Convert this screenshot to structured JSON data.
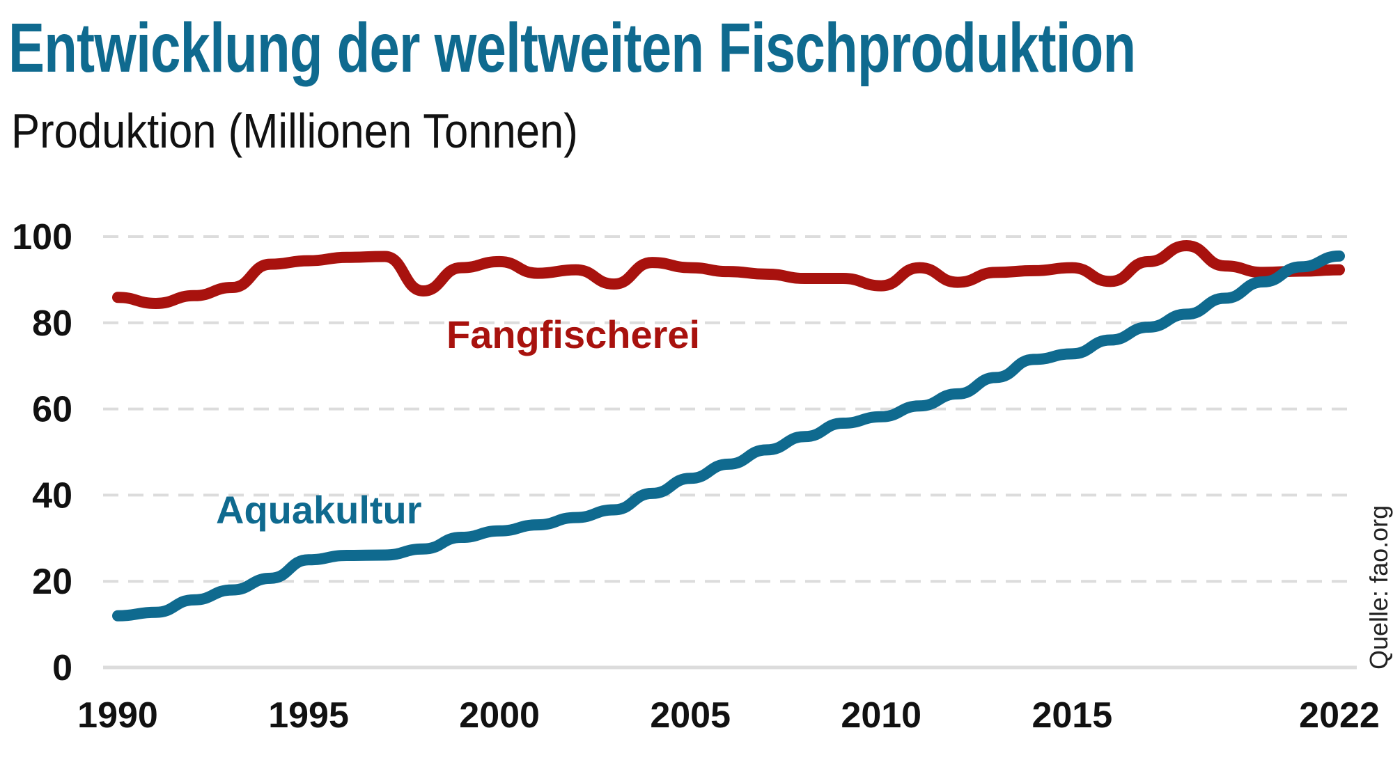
{
  "title": "Entwicklung der weltweiten Fischproduktion",
  "subtitle": "Produktion (Millionen Tonnen)",
  "source": "Quelle: fao.org",
  "chart_data": {
    "type": "line",
    "title": "Entwicklung der weltweiten Fischproduktion",
    "ylabel": "Produktion (Millionen Tonnen)",
    "xlabel": "",
    "xlim": [
      1990,
      2022
    ],
    "ylim": [
      0,
      100
    ],
    "grid": true,
    "x_ticks": [
      "1990",
      "1995",
      "2000",
      "2005",
      "2010",
      "2015",
      "2022"
    ],
    "x_tick_values": [
      1990,
      1995,
      2000,
      2005,
      2010,
      2015,
      2022
    ],
    "y_ticks": [
      "0",
      "20",
      "40",
      "60",
      "80",
      "100"
    ],
    "y_tick_values": [
      0,
      20,
      40,
      60,
      80,
      100
    ],
    "x": [
      1990,
      1991,
      1992,
      1993,
      1994,
      1995,
      1996,
      1997,
      1998,
      1999,
      2000,
      2001,
      2002,
      2003,
      2004,
      2005,
      2006,
      2007,
      2008,
      2009,
      2010,
      2011,
      2012,
      2013,
      2014,
      2015,
      2016,
      2017,
      2018,
      2019,
      2020,
      2021,
      2022
    ],
    "series": [
      {
        "name": "Fangfischerei",
        "color": "#a8120e",
        "values": [
          85.9,
          84.5,
          86.3,
          88.2,
          93.6,
          94.4,
          95.2,
          95.4,
          87.4,
          92.8,
          94.2,
          91.5,
          92.3,
          89.0,
          94.0,
          92.8,
          91.9,
          91.3,
          90.3,
          90.3,
          88.6,
          92.8,
          89.4,
          91.7,
          92.1,
          92.8,
          89.6,
          94.2,
          97.9,
          93.2,
          91.7,
          92.0,
          92.3
        ]
      },
      {
        "name": "Aquakultur",
        "color": "#0f6a8f",
        "values": [
          12.0,
          12.8,
          15.7,
          18.0,
          20.7,
          25.0,
          26.0,
          26.1,
          27.5,
          30.2,
          31.7,
          33.1,
          34.8,
          36.6,
          40.4,
          43.9,
          47.2,
          50.5,
          53.6,
          56.7,
          58.2,
          60.7,
          63.5,
          67.3,
          71.5,
          72.8,
          76.0,
          79.0,
          82.0,
          85.7,
          89.5,
          93.0,
          95.5
        ]
      }
    ]
  }
}
